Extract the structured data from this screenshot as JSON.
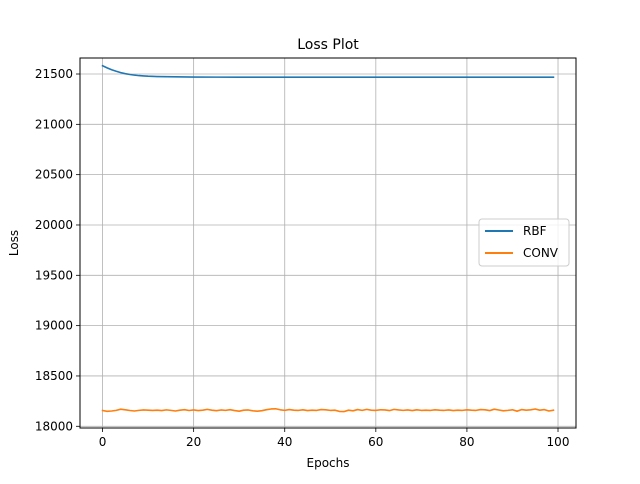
{
  "chart_data": {
    "type": "line",
    "title": "Loss Plot",
    "xlabel": "Epochs",
    "ylabel": "Loss",
    "xlim": [
      -4.95,
      103.95
    ],
    "ylim": [
      17983,
      21659
    ],
    "xticks": [
      0,
      20,
      40,
      60,
      80,
      100
    ],
    "yticks": [
      18000,
      18500,
      19000,
      19500,
      20000,
      20500,
      21000,
      21500
    ],
    "grid": true,
    "legend": {
      "position": "center-right"
    },
    "series": [
      {
        "name": "RBF",
        "color": "#1f77b4",
        "x": [
          0,
          1,
          2,
          3,
          4,
          5,
          6,
          7,
          8,
          9,
          10,
          12,
          14,
          16,
          18,
          20,
          25,
          30,
          40,
          50,
          60,
          70,
          80,
          90,
          99
        ],
        "y": [
          21582,
          21561,
          21542,
          21527,
          21514,
          21503,
          21495,
          21489,
          21484,
          21481,
          21478,
          21475,
          21473,
          21472,
          21471,
          21470,
          21469,
          21468,
          21468,
          21468,
          21468,
          21468,
          21468,
          21468,
          21468
        ]
      },
      {
        "name": "CONV",
        "color": "#ff7f0e",
        "x": [
          0,
          1,
          2,
          3,
          4,
          5,
          6,
          7,
          8,
          9,
          10,
          11,
          12,
          13,
          14,
          15,
          16,
          17,
          18,
          19,
          20,
          21,
          22,
          23,
          24,
          25,
          26,
          27,
          28,
          29,
          30,
          31,
          32,
          33,
          34,
          35,
          36,
          37,
          38,
          39,
          40,
          41,
          42,
          43,
          44,
          45,
          46,
          47,
          48,
          49,
          50,
          51,
          52,
          53,
          54,
          55,
          56,
          57,
          58,
          59,
          60,
          61,
          62,
          63,
          64,
          65,
          66,
          67,
          68,
          69,
          70,
          71,
          72,
          73,
          74,
          75,
          76,
          77,
          78,
          79,
          80,
          81,
          82,
          83,
          84,
          85,
          86,
          87,
          88,
          89,
          90,
          91,
          92,
          93,
          94,
          95,
          96,
          97,
          98,
          99
        ],
        "y": [
          18157,
          18149,
          18152,
          18158,
          18170,
          18164,
          18157,
          18152,
          18158,
          18162,
          18160,
          18158,
          18160,
          18156,
          18163,
          18158,
          18152,
          18160,
          18165,
          18157,
          18162,
          18156,
          18160,
          18168,
          18160,
          18155,
          18162,
          18158,
          18165,
          18156,
          18150,
          18160,
          18162,
          18154,
          18150,
          18155,
          18165,
          18172,
          18174,
          18164,
          18158,
          18166,
          18160,
          18158,
          18164,
          18156,
          18160,
          18158,
          18166,
          18164,
          18158,
          18160,
          18148,
          18146,
          18160,
          18154,
          18166,
          18158,
          18168,
          18160,
          18158,
          18164,
          18162,
          18156,
          18168,
          18162,
          18158,
          18162,
          18156,
          18164,
          18158,
          18160,
          18158,
          18164,
          18160,
          18158,
          18162,
          18156,
          18160,
          18158,
          18164,
          18160,
          18158,
          18166,
          18164,
          18156,
          18170,
          18162,
          18154,
          18158,
          18164,
          18150,
          18166,
          18160,
          18164,
          18172,
          18160,
          18166,
          18152,
          18160
        ]
      }
    ]
  }
}
